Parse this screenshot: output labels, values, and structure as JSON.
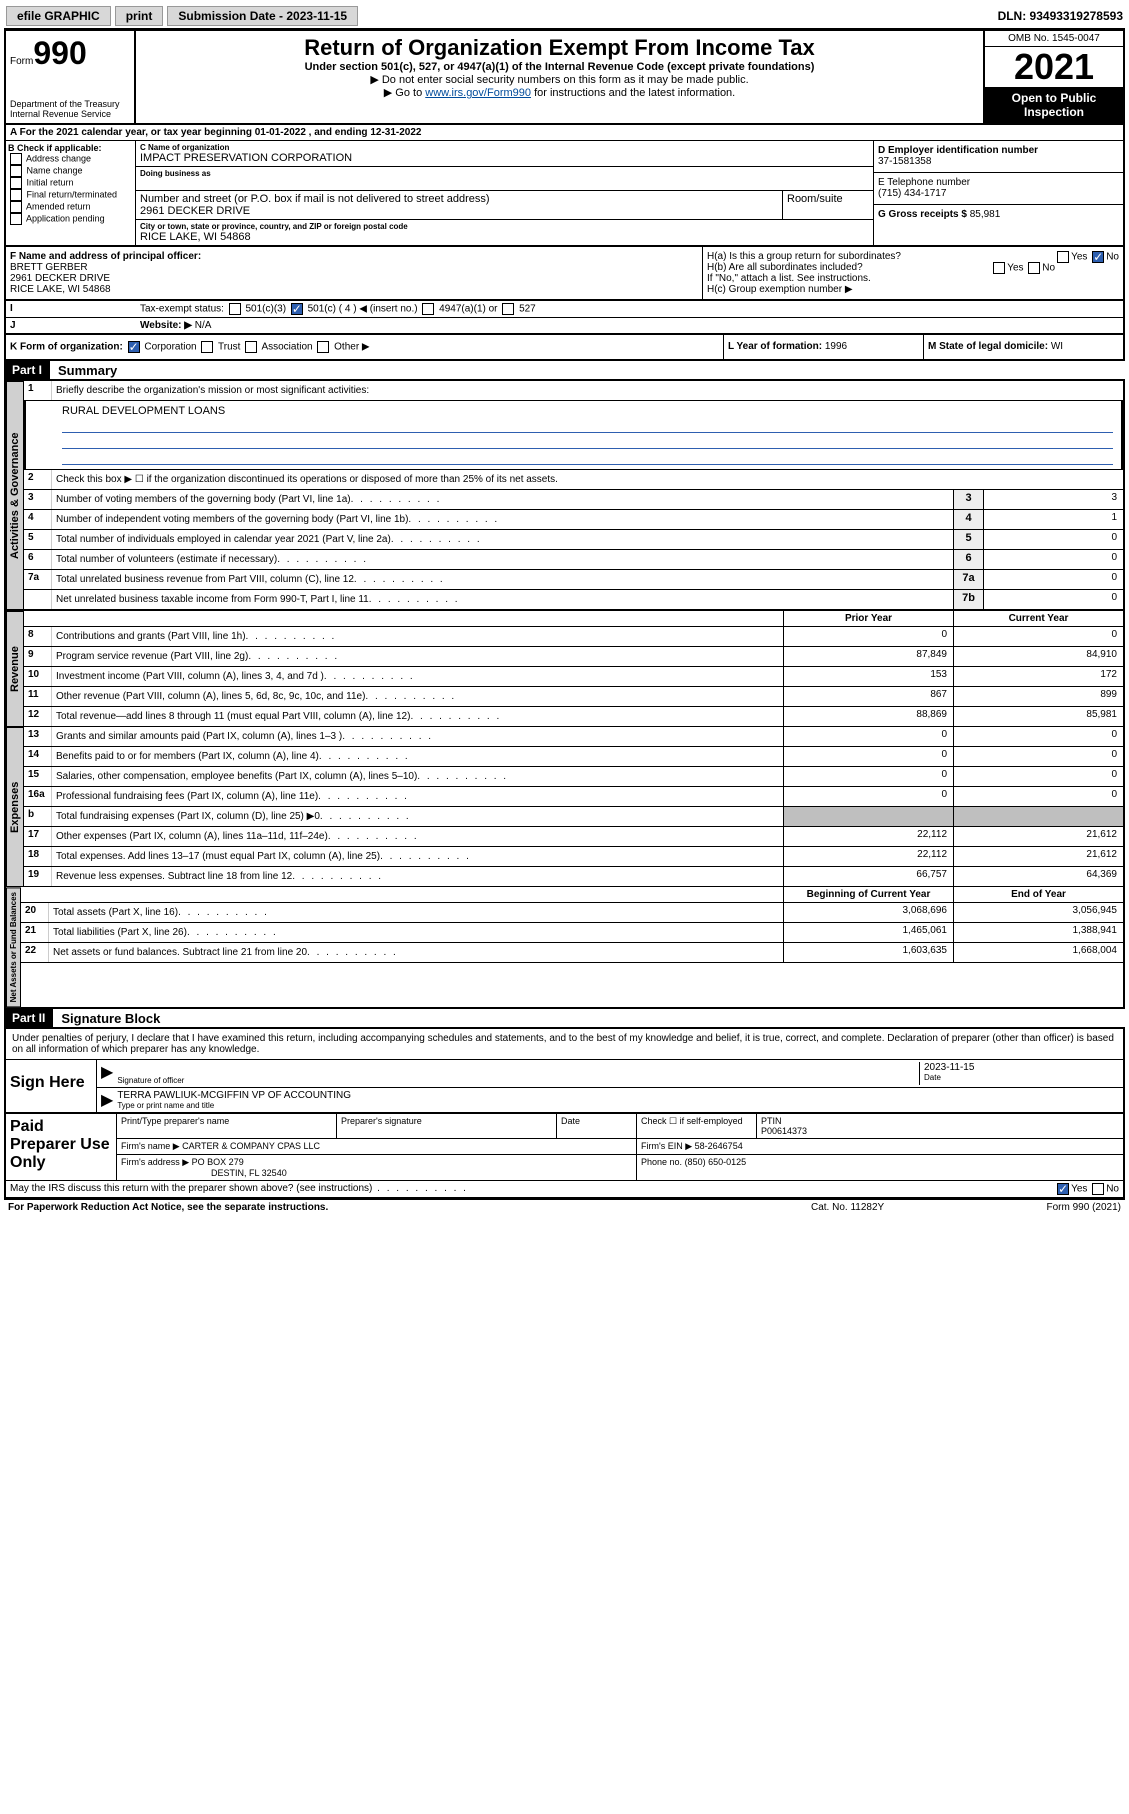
{
  "topbar": {
    "efile": "efile GRAPHIC",
    "print": "print",
    "sub_label": "Submission Date - 2023-11-15",
    "dln": "DLN: 93493319278593"
  },
  "header": {
    "form_word": "Form",
    "form_num": "990",
    "title": "Return of Organization Exempt From Income Tax",
    "sub": "Under section 501(c), 527, or 4947(a)(1) of the Internal Revenue Code (except private foundations)",
    "note1": "▶ Do not enter social security numbers on this form as it may be made public.",
    "note2_pre": "▶ Go to ",
    "note2_link": "www.irs.gov/Form990",
    "note2_post": " for instructions and the latest information.",
    "dept": "Department of the Treasury\nInternal Revenue Service",
    "omb": "OMB No. 1545-0047",
    "year": "2021",
    "otp": "Open to Public Inspection"
  },
  "rowA": {
    "text": "A For the 2021 calendar year, or tax year beginning 01-01-2022    , and ending 12-31-2022"
  },
  "B": {
    "hdr": "B Check if applicable:",
    "opts": [
      "Address change",
      "Name change",
      "Initial return",
      "Final return/terminated",
      "Amended return",
      "Application pending"
    ]
  },
  "C": {
    "name_lbl": "C Name of organization",
    "name": "IMPACT PRESERVATION CORPORATION",
    "dba_lbl": "Doing business as",
    "dba": "",
    "addr_lbl": "Number and street (or P.O. box if mail is not delivered to street address)",
    "room_lbl": "Room/suite",
    "addr": "2961 DECKER DRIVE",
    "city_lbl": "City or town, state or province, country, and ZIP or foreign postal code",
    "city": "RICE LAKE, WI  54868"
  },
  "D": {
    "lbl": "D Employer identification number",
    "val": "37-1581358"
  },
  "E": {
    "lbl": "E Telephone number",
    "val": "(715) 434-1717"
  },
  "G": {
    "lbl": "G Gross receipts $",
    "val": "85,981"
  },
  "F": {
    "lbl": "F  Name and address of principal officer:",
    "name": "BRETT GERBER",
    "addr1": "2961 DECKER DRIVE",
    "addr2": "RICE LAKE, WI  54868"
  },
  "H": {
    "ha": "H(a)  Is this a group return for subordinates?",
    "ha_yes": "Yes",
    "ha_no": "No",
    "hb": "H(b)  Are all subordinates included?",
    "hb_yes": "Yes",
    "hb_no": "No",
    "hb_note": "If \"No,\" attach a list. See instructions.",
    "hc": "H(c)  Group exemption number ▶"
  },
  "I": {
    "lbl": "Tax-exempt status:",
    "o1": "501(c)(3)",
    "o2": "501(c) ( 4 ) ◀ (insert no.)",
    "o3": "4947(a)(1) or",
    "o4": "527"
  },
  "J": {
    "lbl": "Website: ▶",
    "val": "N/A"
  },
  "K": {
    "lbl": "K Form of organization:",
    "o1": "Corporation",
    "o2": "Trust",
    "o3": "Association",
    "o4": "Other ▶"
  },
  "L": {
    "lbl": "L Year of formation:",
    "val": "1996"
  },
  "M": {
    "lbl": "M State of legal domicile:",
    "val": "WI"
  },
  "part1": {
    "label": "Part I",
    "title": "Summary"
  },
  "summary": {
    "l1_lbl": "Briefly describe the organization's mission or most significant activities:",
    "l1_val": "RURAL DEVELOPMENT LOANS",
    "l2": "Check this box ▶ ☐  if the organization discontinued its operations or disposed of more than 25% of its net assets.",
    "lines_single": [
      {
        "n": "3",
        "d": "Number of voting members of the governing body (Part VI, line 1a)",
        "box": "3",
        "v": "3"
      },
      {
        "n": "4",
        "d": "Number of independent voting members of the governing body (Part VI, line 1b)",
        "box": "4",
        "v": "1"
      },
      {
        "n": "5",
        "d": "Total number of individuals employed in calendar year 2021 (Part V, line 2a)",
        "box": "5",
        "v": "0"
      },
      {
        "n": "6",
        "d": "Total number of volunteers (estimate if necessary)",
        "box": "6",
        "v": "0"
      },
      {
        "n": "7a",
        "d": "Total unrelated business revenue from Part VIII, column (C), line 12",
        "box": "7a",
        "v": "0"
      },
      {
        "n": "",
        "d": "Net unrelated business taxable income from Form 990-T, Part I, line 11",
        "box": "7b",
        "v": "0"
      }
    ],
    "col_hdrs": {
      "prior": "Prior Year",
      "current": "Current Year"
    },
    "revenue": [
      {
        "n": "8",
        "d": "Contributions and grants (Part VIII, line 1h)",
        "p": "0",
        "c": "0"
      },
      {
        "n": "9",
        "d": "Program service revenue (Part VIII, line 2g)",
        "p": "87,849",
        "c": "84,910"
      },
      {
        "n": "10",
        "d": "Investment income (Part VIII, column (A), lines 3, 4, and 7d )",
        "p": "153",
        "c": "172"
      },
      {
        "n": "11",
        "d": "Other revenue (Part VIII, column (A), lines 5, 6d, 8c, 9c, 10c, and 11e)",
        "p": "867",
        "c": "899"
      },
      {
        "n": "12",
        "d": "Total revenue—add lines 8 through 11 (must equal Part VIII, column (A), line 12)",
        "p": "88,869",
        "c": "85,981"
      }
    ],
    "expenses": [
      {
        "n": "13",
        "d": "Grants and similar amounts paid (Part IX, column (A), lines 1–3 )",
        "p": "0",
        "c": "0"
      },
      {
        "n": "14",
        "d": "Benefits paid to or for members (Part IX, column (A), line 4)",
        "p": "0",
        "c": "0"
      },
      {
        "n": "15",
        "d": "Salaries, other compensation, employee benefits (Part IX, column (A), lines 5–10)",
        "p": "0",
        "c": "0"
      },
      {
        "n": "16a",
        "d": "Professional fundraising fees (Part IX, column (A), line 11e)",
        "p": "0",
        "c": "0"
      },
      {
        "n": "b",
        "d": "Total fundraising expenses (Part IX, column (D), line 25) ▶0",
        "p": "",
        "c": "",
        "gray": true
      },
      {
        "n": "17",
        "d": "Other expenses (Part IX, column (A), lines 11a–11d, 11f–24e)",
        "p": "22,112",
        "c": "21,612"
      },
      {
        "n": "18",
        "d": "Total expenses. Add lines 13–17 (must equal Part IX, column (A), line 25)",
        "p": "22,112",
        "c": "21,612"
      },
      {
        "n": "19",
        "d": "Revenue less expenses. Subtract line 18 from line 12",
        "p": "66,757",
        "c": "64,369"
      }
    ],
    "net_hdrs": {
      "beg": "Beginning of Current Year",
      "end": "End of Year"
    },
    "net": [
      {
        "n": "20",
        "d": "Total assets (Part X, line 16)",
        "p": "3,068,696",
        "c": "3,056,945"
      },
      {
        "n": "21",
        "d": "Total liabilities (Part X, line 26)",
        "p": "1,465,061",
        "c": "1,388,941"
      },
      {
        "n": "22",
        "d": "Net assets or fund balances. Subtract line 21 from line 20",
        "p": "1,603,635",
        "c": "1,668,004"
      }
    ]
  },
  "vtabs": {
    "gov": "Activities & Governance",
    "rev": "Revenue",
    "exp": "Expenses",
    "net": "Net Assets or Fund Balances"
  },
  "part2": {
    "label": "Part II",
    "title": "Signature Block"
  },
  "sig": {
    "decl": "Under penalties of perjury, I declare that I have examined this return, including accompanying schedules and statements, and to the best of my knowledge and belief, it is true, correct, and complete. Declaration of preparer (other than officer) is based on all information of which preparer has any knowledge.",
    "sign_here": "Sign Here",
    "sig_of": "Signature of officer",
    "date_lbl": "Date",
    "date": "2023-11-15",
    "name_title": "TERRA PAWLIUK-MCGIFFIN  VP OF ACCOUNTING",
    "name_sub": "Type or print name and title"
  },
  "paid": {
    "lbl": "Paid Preparer Use Only",
    "h1": "Print/Type preparer's name",
    "h2": "Preparer's signature",
    "h3": "Date",
    "h4_pre": "Check ☐ if self-employed",
    "h5": "PTIN",
    "ptin": "P00614373",
    "firm_lbl": "Firm's name    ▶",
    "firm": "CARTER & COMPANY CPAS LLC",
    "ein_lbl": "Firm's EIN ▶",
    "ein": "58-2646754",
    "addr_lbl": "Firm's address ▶",
    "addr1": "PO BOX 279",
    "addr2": "DESTIN, FL  32540",
    "phone_lbl": "Phone no.",
    "phone": "(850) 650-0125"
  },
  "discuss": {
    "q": "May the IRS discuss this return with the preparer shown above? (see instructions)",
    "yes": "Yes",
    "no": "No"
  },
  "footer": {
    "pra": "For Paperwork Reduction Act Notice, see the separate instructions.",
    "cat": "Cat. No. 11282Y",
    "form": "Form 990 (2021)"
  }
}
